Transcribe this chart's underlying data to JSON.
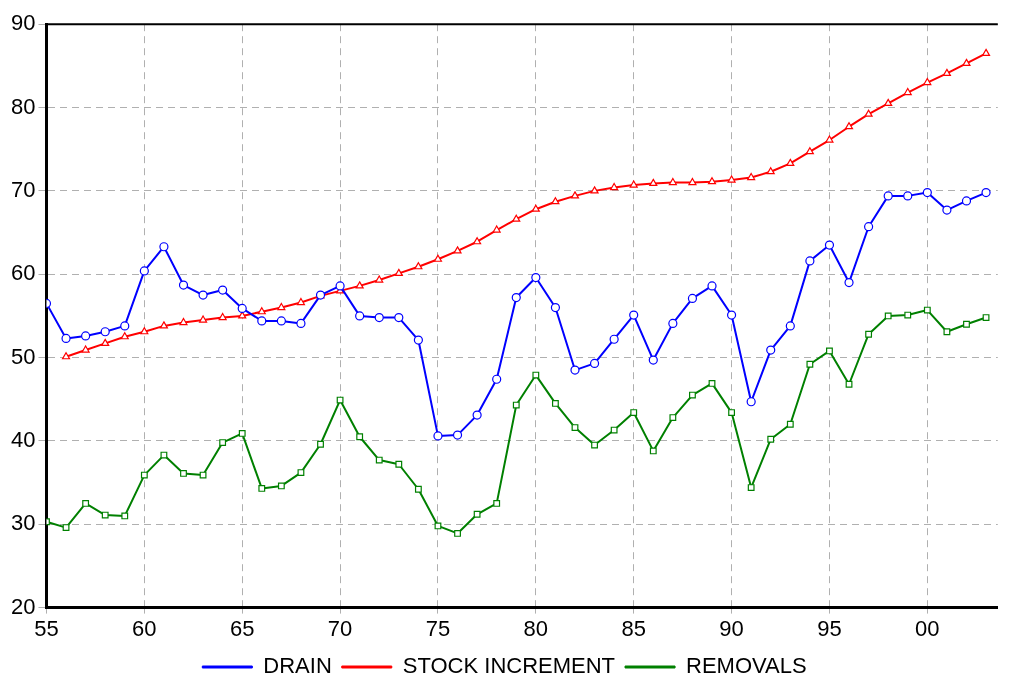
{
  "chart_data": {
    "type": "line",
    "x": [
      1955,
      1956,
      1957,
      1958,
      1959,
      1960,
      1961,
      1962,
      1963,
      1964,
      1965,
      1966,
      1967,
      1968,
      1969,
      1970,
      1971,
      1972,
      1973,
      1974,
      1975,
      1976,
      1977,
      1978,
      1979,
      1980,
      1981,
      1982,
      1983,
      1984,
      1985,
      1986,
      1987,
      1988,
      1989,
      1990,
      1991,
      1992,
      1993,
      1994,
      1995,
      1996,
      1997,
      1998,
      1999,
      2000,
      2001,
      2002,
      2003
    ],
    "series": [
      {
        "name": "DRAIN",
        "color": "#0000ff",
        "marker": "circle",
        "values": [
          56.5,
          52.3,
          52.6,
          53.1,
          53.8,
          60.4,
          63.3,
          58.7,
          57.5,
          58.1,
          55.9,
          54.4,
          54.4,
          54.1,
          57.5,
          58.6,
          55.0,
          54.8,
          54.8,
          52.1,
          40.6,
          40.7,
          43.1,
          47.4,
          57.2,
          59.6,
          56.0,
          48.5,
          49.3,
          52.2,
          55.1,
          49.7,
          54.1,
          57.1,
          58.6,
          55.1,
          44.7,
          50.9,
          53.8,
          61.6,
          63.5,
          59.0,
          65.7,
          69.4,
          69.4,
          69.8,
          67.7,
          68.8,
          69.8
        ]
      },
      {
        "name": "STOCK INCREMENT",
        "color": "#ff0000",
        "marker": "triangle",
        "values": [
          null,
          50.1,
          50.9,
          51.7,
          52.5,
          53.1,
          53.8,
          54.2,
          54.5,
          54.8,
          55.0,
          55.5,
          56.0,
          56.6,
          57.4,
          58.0,
          58.6,
          59.3,
          60.1,
          60.9,
          61.8,
          62.8,
          63.9,
          65.3,
          66.6,
          67.8,
          68.7,
          69.4,
          70.0,
          70.4,
          70.7,
          70.9,
          71.0,
          71.0,
          71.1,
          71.3,
          71.6,
          72.3,
          73.3,
          74.7,
          76.1,
          77.7,
          79.2,
          80.5,
          81.8,
          83.0,
          84.1,
          85.3,
          86.5
        ]
      },
      {
        "name": "REMOVALS",
        "color": "#008000",
        "marker": "square",
        "values": [
          30.3,
          29.6,
          32.5,
          31.1,
          31.0,
          35.9,
          38.3,
          36.1,
          35.9,
          39.8,
          40.9,
          34.3,
          34.6,
          36.2,
          39.6,
          44.9,
          40.5,
          37.7,
          37.2,
          34.2,
          29.8,
          28.9,
          31.2,
          32.5,
          44.3,
          47.9,
          44.5,
          41.6,
          39.5,
          41.3,
          43.4,
          38.8,
          42.8,
          45.5,
          46.9,
          43.4,
          34.4,
          40.2,
          42.0,
          49.2,
          50.8,
          46.8,
          52.8,
          55.0,
          55.1,
          55.7,
          53.1,
          54.0,
          54.8
        ]
      }
    ],
    "xlim": [
      1955,
      2003.6
    ],
    "xticks": [
      {
        "value": 1955,
        "label": "55"
      },
      {
        "value": 1960,
        "label": "60"
      },
      {
        "value": 1965,
        "label": "65"
      },
      {
        "value": 1970,
        "label": "70"
      },
      {
        "value": 1975,
        "label": "75"
      },
      {
        "value": 1980,
        "label": "80"
      },
      {
        "value": 1985,
        "label": "85"
      },
      {
        "value": 1990,
        "label": "90"
      },
      {
        "value": 1995,
        "label": "95"
      },
      {
        "value": 2000,
        "label": "00"
      }
    ],
    "ylim": [
      20,
      90
    ],
    "yticks": [
      20,
      30,
      40,
      50,
      60,
      70,
      80,
      90
    ],
    "grid": true,
    "legend": "bottom",
    "line_style": "solid"
  }
}
